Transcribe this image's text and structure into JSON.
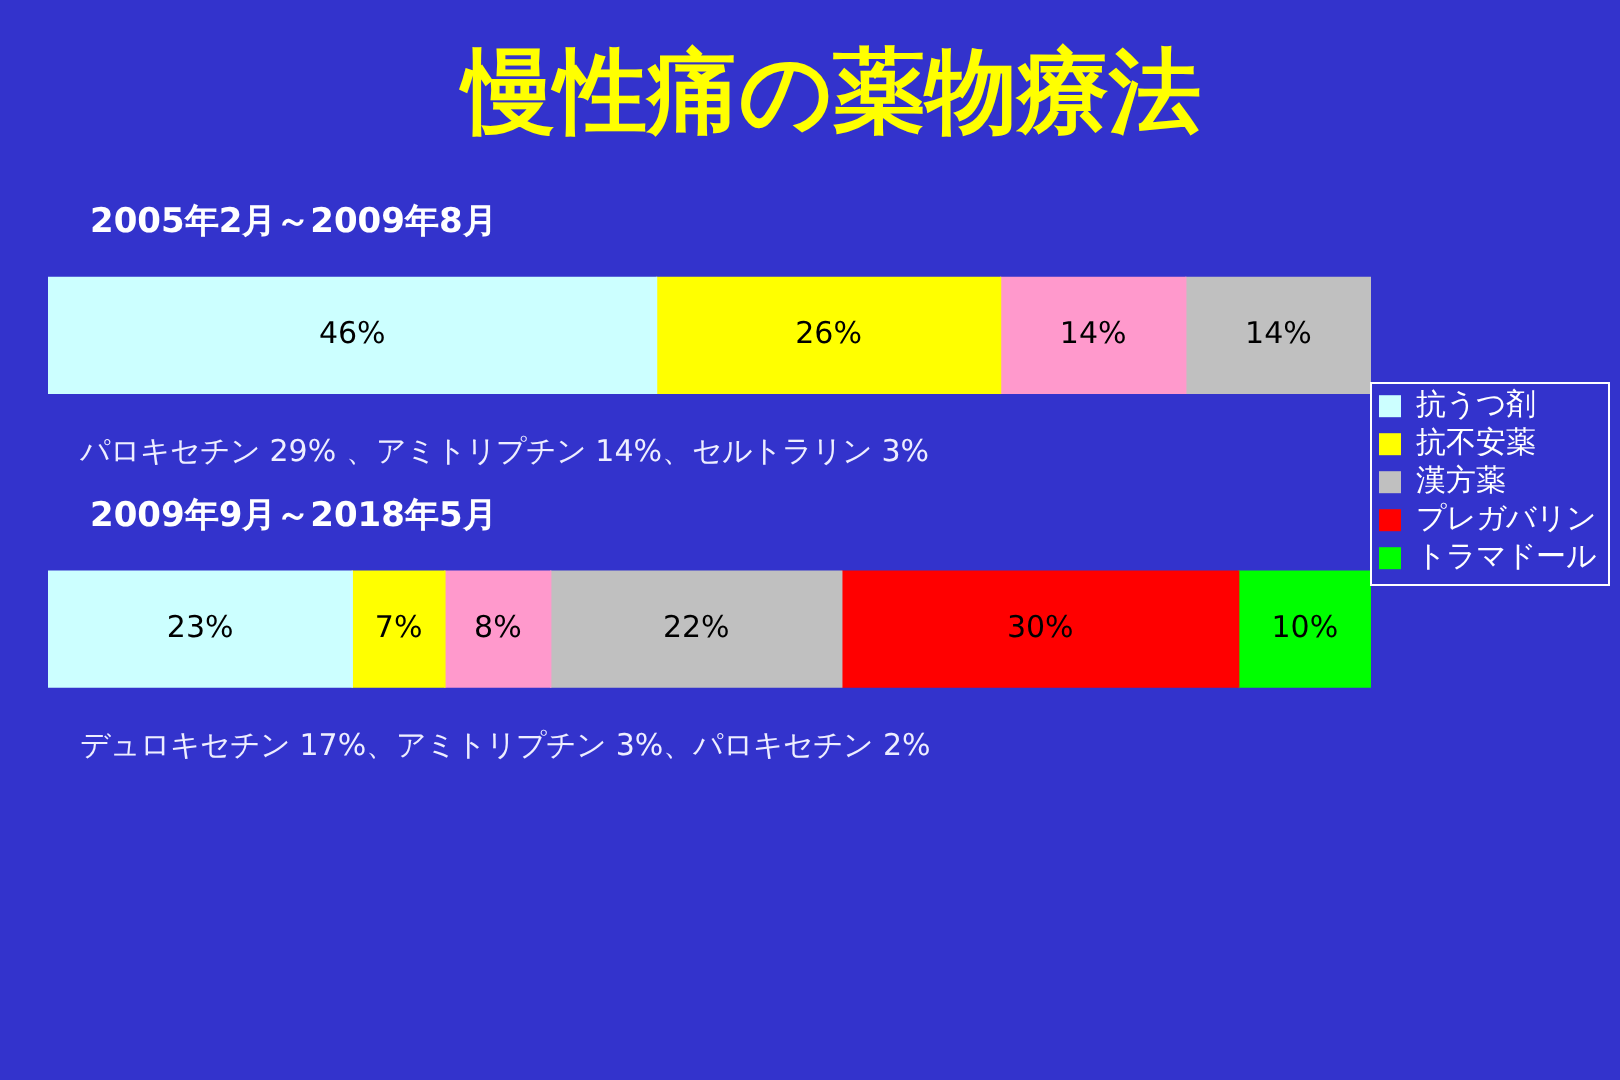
{
  "chart_data": {
    "type": "bar",
    "title": "慢性痛の薬物療法",
    "orientation": "horizontal",
    "stacked": true,
    "categories": [
      "2005年2月～2009年8月",
      "2009年9月～2018年5月"
    ],
    "series": [
      {
        "name": "抗うつ剤",
        "color": "#ccffff",
        "values": [
          46,
          23
        ],
        "value_labels": [
          "46%",
          "23%"
        ]
      },
      {
        "name": "抗不安薬",
        "color": "#ffff00",
        "values": [
          26,
          7
        ],
        "value_labels": [
          "26%",
          "7%"
        ]
      },
      {
        "color": "#ff99cc",
        "values": [
          14,
          8
        ],
        "value_labels": [
          "14%",
          "8%"
        ]
      },
      {
        "name": "漢方薬",
        "color": "#c0c0c0",
        "values": [
          14,
          22
        ],
        "value_labels": [
          "14%",
          "22%"
        ]
      },
      {
        "name": "プレガバリン",
        "color": "#ff0000",
        "values": [
          null,
          30
        ],
        "value_labels": [
          null,
          "30%"
        ]
      },
      {
        "name": "トラマドール",
        "color": "#00ff00",
        "values": [
          null,
          10
        ],
        "value_labels": [
          null,
          "10%"
        ]
      }
    ],
    "xlim": [
      0,
      100
    ],
    "tick_labels": "y",
    "legend": "right",
    "annotations": [
      "パロキセチン 29% 、アミトリプチン 14%、セルトラリン 3%",
      "デュロキセチン 17%、アミトリプチン 3%、パロキセチン 2%"
    ]
  }
}
